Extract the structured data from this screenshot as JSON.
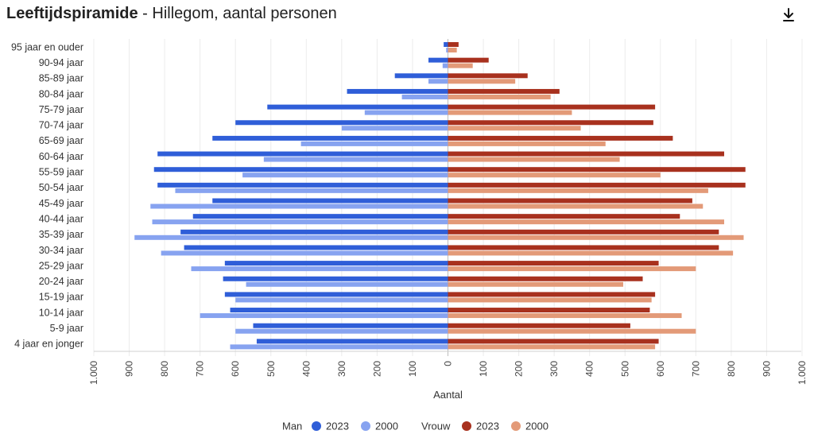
{
  "header": {
    "title_bold": "Leeftijdspiramide",
    "title_rest": " - Hillegom, aantal personen",
    "download_icon": "download-icon"
  },
  "colors": {
    "man_2023": "#2f5ed8",
    "man_2000": "#87a3f0",
    "vrouw_2023": "#a8311e",
    "vrouw_2000": "#e39a78"
  },
  "chart_data": {
    "type": "bar",
    "orientation": "horizontal-pyramid",
    "categories": [
      "95 jaar en ouder",
      "90-94 jaar",
      "85-89 jaar",
      "80-84 jaar",
      "75-79 jaar",
      "70-74 jaar",
      "65-69 jaar",
      "60-64 jaar",
      "55-59 jaar",
      "50-54 jaar",
      "45-49 jaar",
      "40-44 jaar",
      "35-39 jaar",
      "30-34 jaar",
      "25-29 jaar",
      "20-24 jaar",
      "15-19 jaar",
      "10-14 jaar",
      "5-9 jaar",
      "4 jaar en jonger"
    ],
    "series": [
      {
        "group": "Man",
        "name": "2023",
        "side": "left",
        "values": [
          12,
          55,
          150,
          285,
          510,
          600,
          665,
          820,
          830,
          820,
          665,
          720,
          755,
          745,
          630,
          635,
          630,
          615,
          550,
          540
        ]
      },
      {
        "group": "Man",
        "name": "2000",
        "side": "left",
        "values": [
          5,
          15,
          55,
          130,
          235,
          300,
          415,
          520,
          580,
          770,
          840,
          835,
          885,
          810,
          725,
          570,
          600,
          700,
          600,
          615
        ]
      },
      {
        "group": "Vrouw",
        "name": "2023",
        "side": "right",
        "values": [
          30,
          115,
          225,
          315,
          585,
          580,
          635,
          780,
          840,
          840,
          690,
          655,
          765,
          765,
          595,
          550,
          585,
          570,
          515,
          595
        ]
      },
      {
        "group": "Vrouw",
        "name": "2000",
        "side": "right",
        "values": [
          25,
          70,
          190,
          290,
          350,
          375,
          445,
          485,
          600,
          735,
          720,
          780,
          835,
          805,
          700,
          495,
          575,
          660,
          700,
          585
        ]
      }
    ],
    "x_ticks": [
      "1.000",
      "900",
      "800",
      "700",
      "600",
      "500",
      "400",
      "300",
      "200",
      "100",
      "0",
      "100",
      "200",
      "300",
      "400",
      "500",
      "600",
      "700",
      "800",
      "900",
      "1.000"
    ],
    "xlim": [
      -1000,
      1000
    ],
    "xlabel": "Aantal",
    "grid": true,
    "legend": {
      "placement": "bottom",
      "groups": [
        {
          "label": "Man",
          "items": [
            "2023",
            "2000"
          ]
        },
        {
          "label": "Vrouw",
          "items": [
            "2023",
            "2000"
          ]
        }
      ]
    }
  }
}
